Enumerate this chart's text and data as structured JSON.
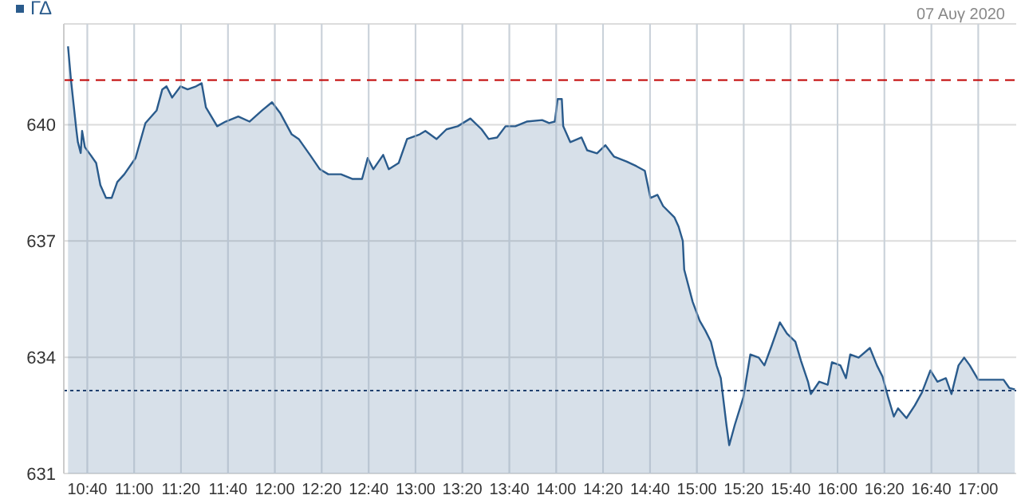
{
  "chart_data": {
    "type": "area",
    "subtitle": "07 Αυγ 2020",
    "legend": "top left",
    "grid": true,
    "tick_labels": true,
    "xlim": [
      10.5,
      17.27
    ],
    "ylim": [
      631,
      642.6
    ],
    "yticks": [
      631,
      634,
      637,
      640
    ],
    "xticks": [
      {
        "value": 10.667,
        "label": "10:40"
      },
      {
        "value": 11,
        "label": "11:00"
      },
      {
        "value": 11.333,
        "label": "11:20"
      },
      {
        "value": 11.667,
        "label": "11:40"
      },
      {
        "value": 12,
        "label": "12:00"
      },
      {
        "value": 12.333,
        "label": "12:20"
      },
      {
        "value": 12.667,
        "label": "12:40"
      },
      {
        "value": 13,
        "label": "13:00"
      },
      {
        "value": 13.333,
        "label": "13:20"
      },
      {
        "value": 13.667,
        "label": "13:40"
      },
      {
        "value": 14,
        "label": "14:00"
      },
      {
        "value": 14.333,
        "label": "14:20"
      },
      {
        "value": 14.667,
        "label": "14:40"
      },
      {
        "value": 15,
        "label": "15:00"
      },
      {
        "value": 15.333,
        "label": "15:20"
      },
      {
        "value": 15.667,
        "label": "15:40"
      },
      {
        "value": 16,
        "label": "16:00"
      },
      {
        "value": 16.333,
        "label": "16:20"
      },
      {
        "value": 16.667,
        "label": "16:40"
      },
      {
        "value": 17,
        "label": "17:00"
      }
    ],
    "ref_lines": [
      {
        "axis": "y",
        "value": 641.15,
        "color": "#c00000",
        "line_style": "dashed"
      },
      {
        "axis": "y",
        "value": 633.14,
        "color": "#1f3f6e",
        "line_style": "dotted"
      }
    ],
    "series": [
      {
        "name": "ΓΔ",
        "color": "#2a5b8c",
        "x": [
          10.53,
          10.55,
          10.57,
          10.59,
          10.6,
          10.62,
          10.63,
          10.65,
          10.69,
          10.73,
          10.76,
          10.8,
          10.84,
          10.88,
          10.93,
          11.01,
          11.08,
          11.16,
          11.2,
          11.23,
          11.27,
          11.33,
          11.38,
          11.44,
          11.48,
          11.51,
          11.59,
          11.65,
          11.74,
          11.82,
          11.91,
          11.98,
          12.04,
          12.12,
          12.17,
          12.25,
          12.32,
          12.38,
          12.47,
          12.55,
          12.62,
          12.66,
          12.7,
          12.77,
          12.81,
          12.88,
          12.94,
          13.03,
          13.07,
          13.15,
          13.22,
          13.3,
          13.39,
          13.47,
          13.52,
          13.58,
          13.64,
          13.71,
          13.79,
          13.9,
          13.95,
          13.99,
          14.01,
          14.04,
          14.05,
          14.1,
          14.18,
          14.22,
          14.29,
          14.35,
          14.41,
          14.5,
          14.57,
          14.63,
          14.67,
          14.72,
          14.76,
          14.84,
          14.87,
          14.9,
          14.91,
          14.97,
          15.02,
          15.06,
          15.1,
          15.14,
          15.17,
          15.21,
          15.23,
          15.27,
          15.33,
          15.38,
          15.44,
          15.48,
          15.53,
          15.59,
          15.64,
          15.7,
          15.74,
          15.79,
          15.81,
          15.87,
          15.93,
          15.96,
          16.02,
          16.06,
          16.09,
          16.15,
          16.23,
          16.28,
          16.32,
          16.36,
          16.4,
          16.43,
          16.49,
          16.55,
          16.6,
          16.66,
          16.71,
          16.77,
          16.81,
          16.86,
          16.9,
          16.94,
          17,
          17.18,
          17.22,
          17.26
        ],
        "values": [
          642.02,
          641.19,
          640.51,
          639.84,
          639.55,
          639.27,
          639.84,
          639.42,
          639.22,
          639.01,
          638.44,
          638.11,
          638.11,
          638.52,
          638.72,
          639.14,
          640.04,
          640.37,
          640.91,
          640.99,
          640.7,
          640.99,
          640.91,
          640.99,
          641.07,
          640.45,
          639.96,
          640.08,
          640.21,
          640.08,
          640.37,
          640.58,
          640.29,
          639.75,
          639.63,
          639.22,
          638.85,
          638.72,
          638.72,
          638.6,
          638.6,
          639.14,
          638.85,
          639.22,
          638.85,
          639.01,
          639.63,
          639.75,
          639.84,
          639.63,
          639.88,
          639.96,
          640.16,
          639.88,
          639.63,
          639.67,
          639.96,
          639.96,
          640.08,
          640.12,
          640.04,
          640.08,
          640.66,
          640.66,
          639.96,
          639.55,
          639.67,
          639.34,
          639.26,
          639.47,
          639.18,
          639.05,
          638.93,
          638.81,
          638.11,
          638.19,
          637.9,
          637.61,
          637.37,
          637,
          636.26,
          635.43,
          634.94,
          634.69,
          634.4,
          633.79,
          633.46,
          632.26,
          631.73,
          632.26,
          632.96,
          634.07,
          633.99,
          633.79,
          634.28,
          634.9,
          634.61,
          634.4,
          633.91,
          633.37,
          633.05,
          633.37,
          633.29,
          633.87,
          633.79,
          633.46,
          634.07,
          633.99,
          634.24,
          633.79,
          633.5,
          632.96,
          632.47,
          632.68,
          632.43,
          632.76,
          633.09,
          633.66,
          633.37,
          633.46,
          633.05,
          633.79,
          633.99,
          633.79,
          633.42,
          633.42,
          633.21,
          633.17
        ]
      }
    ]
  }
}
